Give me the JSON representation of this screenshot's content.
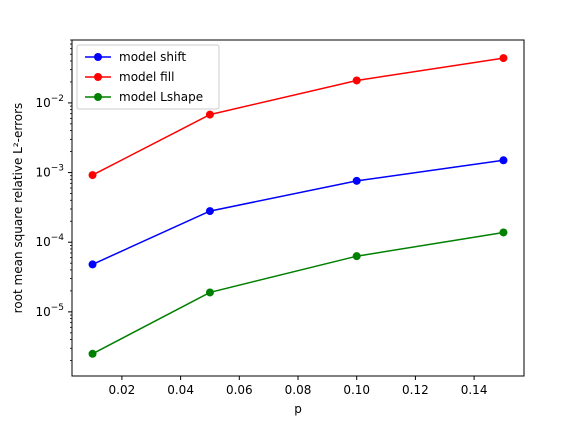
{
  "chart_data": {
    "type": "line",
    "title": "",
    "xlabel": "p",
    "ylabel": "root mean square relative L²-errors",
    "y_scale": "log",
    "xlim": [
      0.003,
      0.157
    ],
    "ylim": [
      1.2e-06,
      0.08
    ],
    "grid": false,
    "legend_position": "top-left",
    "x": [
      0.01,
      0.05,
      0.1,
      0.15
    ],
    "x_ticks": [
      {
        "value": 0.02,
        "label": "0.02"
      },
      {
        "value": 0.04,
        "label": "0.04"
      },
      {
        "value": 0.06,
        "label": "0.06"
      },
      {
        "value": 0.08,
        "label": "0.08"
      },
      {
        "value": 0.1,
        "label": "0.10"
      },
      {
        "value": 0.12,
        "label": "0.12"
      },
      {
        "value": 0.14,
        "label": "0.14"
      }
    ],
    "y_ticks": [
      {
        "value": 1e-05,
        "base": "10",
        "exp": "−5"
      },
      {
        "value": 0.0001,
        "base": "10",
        "exp": "−4"
      },
      {
        "value": 0.001,
        "base": "10",
        "exp": "−3"
      },
      {
        "value": 0.01,
        "base": "10",
        "exp": "−2"
      }
    ],
    "series": [
      {
        "name": "model shift",
        "color": "#0000ff",
        "values": [
          4.8e-05,
          0.00028,
          0.00076,
          0.0015
        ]
      },
      {
        "name": "model fill",
        "color": "#ff0000",
        "values": [
          0.00092,
          0.0068,
          0.021,
          0.044
        ]
      },
      {
        "name": "model Lshape",
        "color": "#008000",
        "values": [
          2.5e-06,
          1.9e-05,
          6.3e-05,
          0.000138
        ]
      }
    ]
  }
}
